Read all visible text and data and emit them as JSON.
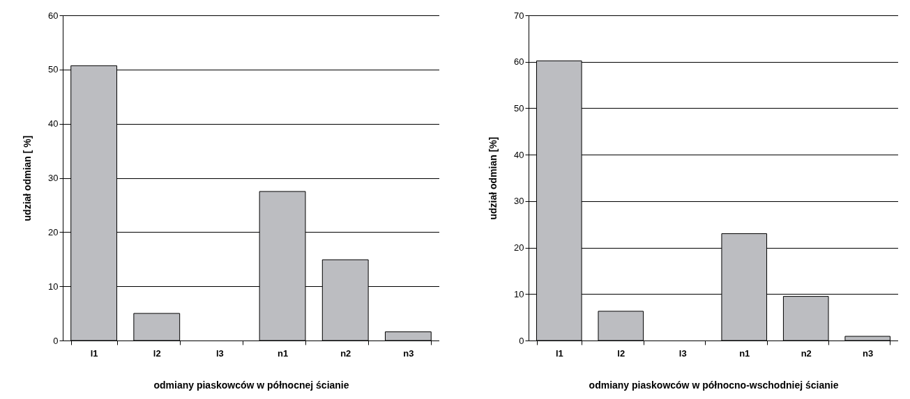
{
  "chart_data": [
    {
      "type": "bar",
      "xlabel": "odmiany piaskowców w północnej ścianie",
      "ylabel": "udział odmian [ %]",
      "categories": [
        "l1",
        "l2",
        "l3",
        "n1",
        "n2",
        "n3"
      ],
      "values": [
        50.7,
        5.0,
        0,
        27.5,
        14.9,
        1.6
      ],
      "color": "#bcbdc1",
      "ylim": [
        0,
        60
      ],
      "yticks": [
        0,
        10,
        20,
        30,
        40,
        50,
        60
      ],
      "grid": "y"
    },
    {
      "type": "bar",
      "xlabel": "odmiany piaskowców w północno-wschodniej ścianie",
      "ylabel": "udział odmian [%]",
      "categories": [
        "l1",
        "l2",
        "l3",
        "n1",
        "n2",
        "n3"
      ],
      "values": [
        60.2,
        6.3,
        0,
        23.0,
        9.5,
        0.9
      ],
      "color": "#bcbdc1",
      "ylim": [
        0,
        70
      ],
      "yticks": [
        0,
        10,
        20,
        30,
        40,
        50,
        60,
        70
      ],
      "grid": "y"
    }
  ]
}
